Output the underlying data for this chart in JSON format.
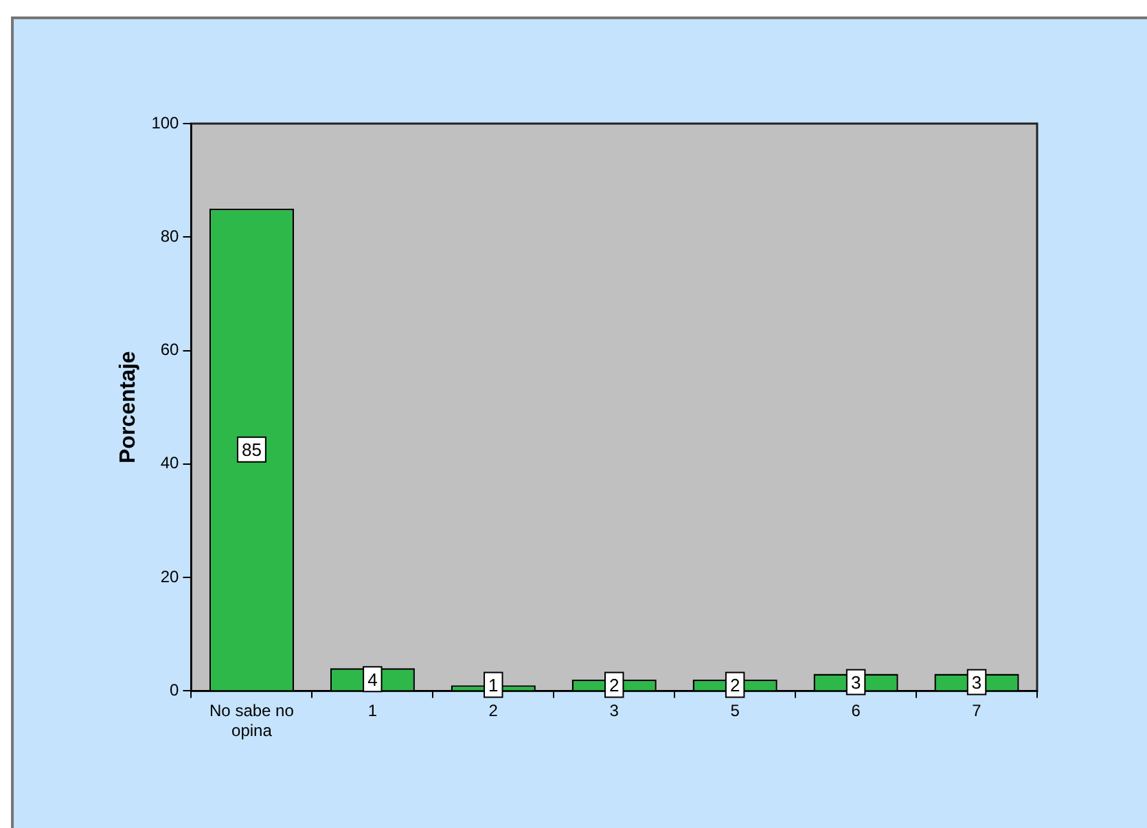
{
  "chart_data": {
    "type": "bar",
    "ylabel": "Porcentaje",
    "categories": [
      "No sabe no opina",
      "1",
      "2",
      "3",
      "5",
      "6",
      "7"
    ],
    "values": [
      85,
      4,
      1,
      2,
      2,
      3,
      3
    ],
    "color": "#2eb84a",
    "ylim": [
      0,
      100
    ],
    "yticks": [
      0,
      20,
      40,
      60,
      80,
      100
    ],
    "grid": false,
    "legend": false,
    "data_labels": true
  }
}
